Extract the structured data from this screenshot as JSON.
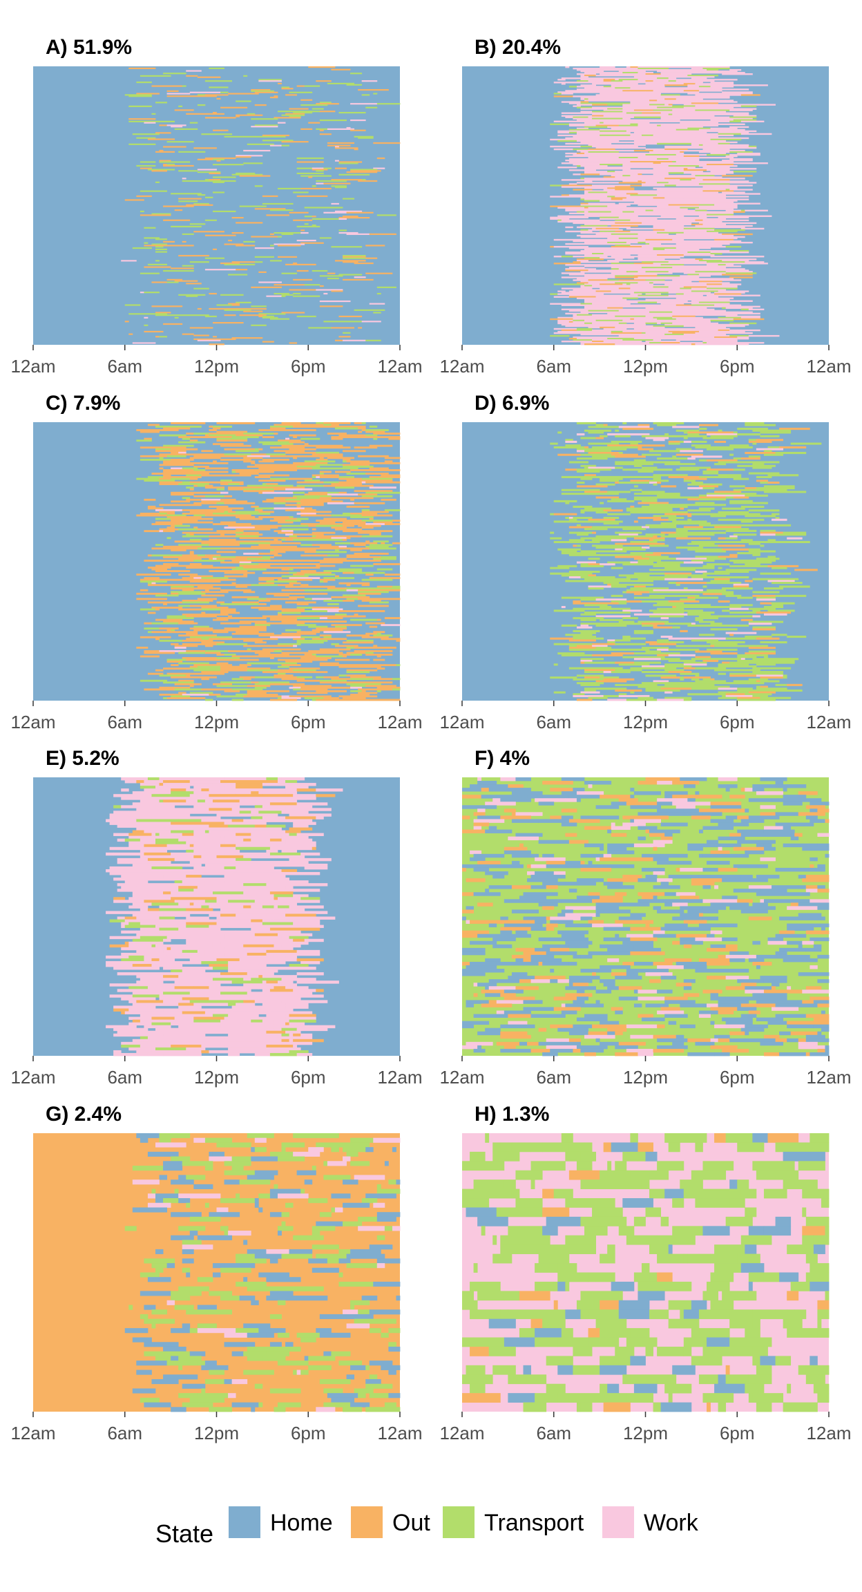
{
  "chart_data": {
    "type": "heatmap",
    "description_kind": "sequence index plot (state per time of day per individual)",
    "x_tick_labels": [
      "12am",
      "6am",
      "12pm",
      "6pm",
      "12am"
    ],
    "x_range_hours": [
      0,
      24
    ],
    "grid": false,
    "legend": {
      "title": "State",
      "placement": "bottom",
      "items": [
        {
          "state": "Home",
          "color": "#7fadcf"
        },
        {
          "state": "Out",
          "color": "#f8b263"
        },
        {
          "state": "Transport",
          "color": "#b2dd6b"
        },
        {
          "state": "Work",
          "color": "#f9c8df"
        }
      ]
    },
    "panels": [
      {
        "label": "A) 51.9%",
        "share_percent": 51.9,
        "rows": 220,
        "base": "Home",
        "active_start_h": 7,
        "active_end_h": 22,
        "mix": {
          "Home": 0.86,
          "Out": 0.06,
          "Transport": 0.06,
          "Work": 0.02
        }
      },
      {
        "label": "B) 20.4%",
        "share_percent": 20.4,
        "rows": 200,
        "base": "Home",
        "active_start_h": 7,
        "active_end_h": 18,
        "mix": {
          "Home": 0.1,
          "Out": 0.06,
          "Transport": 0.08,
          "Work": 0.76
        }
      },
      {
        "label": "C) 7.9%",
        "share_percent": 7.9,
        "rows": 160,
        "base": "Home",
        "active_start_h": 8,
        "active_end_h": 23,
        "mix": {
          "Home": 0.45,
          "Out": 0.4,
          "Transport": 0.13,
          "Work": 0.02
        }
      },
      {
        "label": "D) 6.9%",
        "share_percent": 6.9,
        "rows": 150,
        "base": "Home",
        "active_start_h": 7,
        "active_end_h": 21,
        "mix": {
          "Home": 0.48,
          "Out": 0.08,
          "Transport": 0.4,
          "Work": 0.04
        }
      },
      {
        "label": "E) 5.2%",
        "share_percent": 5.2,
        "rows": 100,
        "base": "Home",
        "active_start_h": 6,
        "active_end_h": 18,
        "mix": {
          "Home": 0.05,
          "Out": 0.1,
          "Transport": 0.08,
          "Work": 0.77
        }
      },
      {
        "label": "F) 4%",
        "share_percent": 4,
        "rows": 80,
        "base": "Transport",
        "active_start_h": 0,
        "active_end_h": 24,
        "mix": {
          "Home": 0.3,
          "Out": 0.12,
          "Transport": 0.52,
          "Work": 0.06
        }
      },
      {
        "label": "G) 2.4%",
        "share_percent": 2.4,
        "rows": 60,
        "base": "Out",
        "active_start_h": 7,
        "active_end_h": 24,
        "mix": {
          "Home": 0.14,
          "Out": 0.62,
          "Transport": 0.2,
          "Work": 0.04
        }
      },
      {
        "label": "H) 1.3%",
        "share_percent": 1.3,
        "rows": 30,
        "base": "Work",
        "active_start_h": 0,
        "active_end_h": 24,
        "mix": {
          "Home": 0.08,
          "Out": 0.04,
          "Transport": 0.44,
          "Work": 0.44
        }
      }
    ]
  }
}
